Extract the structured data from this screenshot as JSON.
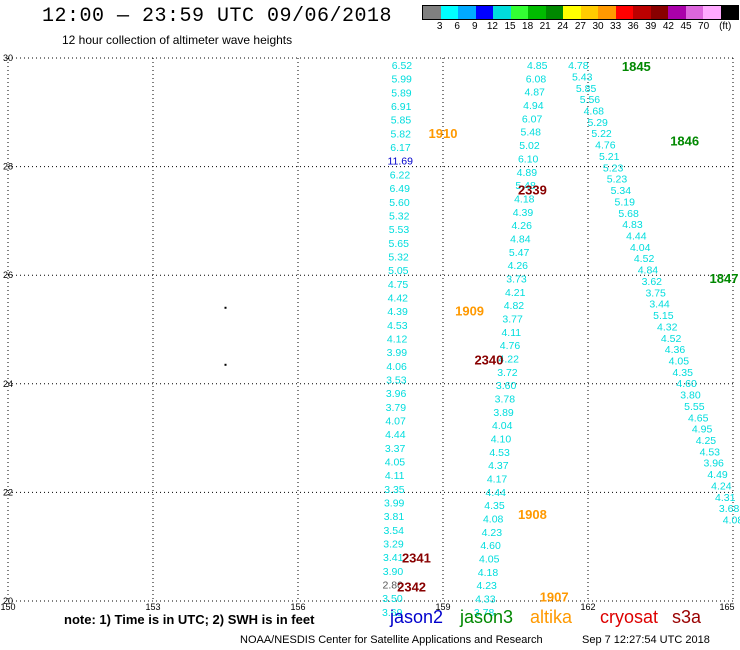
{
  "header": {
    "title": "12:00 — 23:59 UTC 09/06/2018",
    "subtitle": "12 hour collection of altimeter wave heights"
  },
  "legend": {
    "colors": [
      "#808080",
      "#00ffff",
      "#00aaff",
      "#0000ff",
      "#00dddd",
      "#33ff33",
      "#00bb00",
      "#008800",
      "#ffff00",
      "#ffcc00",
      "#ff9900",
      "#ff0000",
      "#bb0000",
      "#880000",
      "#aa00aa",
      "#dd66dd",
      "#ffaaff",
      "#000000"
    ],
    "ticks": [
      {
        "label": "3",
        "slot": 1
      },
      {
        "label": "6",
        "slot": 2
      },
      {
        "label": "9",
        "slot": 3
      },
      {
        "label": "12",
        "slot": 4
      },
      {
        "label": "15",
        "slot": 5
      },
      {
        "label": "18",
        "slot": 6
      },
      {
        "label": "21",
        "slot": 7
      },
      {
        "label": "24",
        "slot": 8
      },
      {
        "label": "27",
        "slot": 9
      },
      {
        "label": "30",
        "slot": 10
      },
      {
        "label": "33",
        "slot": 11
      },
      {
        "label": "36",
        "slot": 12
      },
      {
        "label": "39",
        "slot": 13
      },
      {
        "label": "42",
        "slot": 14
      },
      {
        "label": "45",
        "slot": 15
      },
      {
        "label": "70",
        "slot": 16
      },
      {
        "label": "(ft)",
        "slot": 17
      }
    ]
  },
  "footer": {
    "note": "note: 1) Time is in UTC; 2) SWH is in feet",
    "credit": "NOAA/NESDIS Center for Satellite Applications and Research",
    "time": "Sep  7 12:27:54 UTC 2018"
  },
  "missions": [
    {
      "name": "jason2",
      "color": "#0000cc"
    },
    {
      "name": "jason3",
      "color": "#008800"
    },
    {
      "name": "altika",
      "color": "#ff9900"
    },
    {
      "name": "cryosat",
      "color": "#dd0000"
    },
    {
      "name": "s3a",
      "color": "#990000"
    }
  ],
  "chart_data": {
    "type": "scatter",
    "title": "12:00 — 23:59 UTC 09/06/2018",
    "subtitle": "12 hour collection of altimeter wave heights",
    "xlim": [
      150,
      165
    ],
    "ylim": [
      20,
      30
    ],
    "x_ticks": [
      150,
      153,
      156,
      159,
      162,
      165
    ],
    "x_tick_labels": [
      "150",
      "153",
      "156",
      "159",
      "162",
      "165"
    ],
    "y_ticks": [
      20,
      22,
      24,
      26,
      28,
      30
    ],
    "y_tick_labels": [
      "20",
      "22",
      "24",
      "26",
      "28",
      "30"
    ],
    "grid": "dotted",
    "dots": [
      {
        "x": 154.5,
        "y": 25.4
      },
      {
        "x": 154.5,
        "y": 24.35
      }
    ],
    "tracks": [
      {
        "color": "#00dddd",
        "x_top": 158.15,
        "y_top": 29.87,
        "x_bot": 157.95,
        "y_bot": 19.8,
        "values": [
          "6.52",
          "5.99",
          "5.89",
          "6.91",
          "5.85",
          "5.82",
          "6.17",
          "11.69",
          "6.22",
          "6.49",
          "5.60",
          "5.32",
          "5.53",
          "5.65",
          "5.32",
          "5.05",
          "4.75",
          "4.42",
          "4.39",
          "4.53",
          "4.12",
          "3.99",
          "4.06",
          "3.53",
          "3.96",
          "3.79",
          "4.07",
          "4.44",
          "3.37",
          "4.05",
          "4.11",
          "3.35",
          "3.99",
          "3.81",
          "3.54",
          "3.29",
          "3.41",
          "3.90",
          "2.80",
          "3.50",
          "3.69"
        ],
        "special": {
          "7": "#0000cc",
          "38": "#555555"
        }
      },
      {
        "color": "#00dddd",
        "x_top": 160.95,
        "y_top": 29.87,
        "x_bot": 159.85,
        "y_bot": 19.8,
        "values": [
          "4.85",
          "6.08",
          "4.87",
          "4.94",
          "6.07",
          "5.48",
          "5.02",
          "6.10",
          "4.89",
          "5.48",
          "4.18",
          "4.39",
          "4.26",
          "4.84",
          "5.47",
          "4.26",
          "3.73",
          "4.21",
          "4.82",
          "3.77",
          "4.11",
          "4.76",
          "4.22",
          "3.72",
          "3.60",
          "3.78",
          "3.89",
          "4.04",
          "4.10",
          "4.53",
          "4.37",
          "4.17",
          "4.44",
          "4.35",
          "4.08",
          "4.23",
          "4.60",
          "4.05",
          "4.18",
          "4.23",
          "4.33",
          "3.78"
        ]
      },
      {
        "color": "#00dddd",
        "x_top": 161.8,
        "y_top": 29.87,
        "x_bot": 165.0,
        "y_bot": 21.5,
        "values": [
          "4.78",
          "5.43",
          "5.85",
          "5.56",
          "4.68",
          "5.29",
          "5.22",
          "4.76",
          "5.21",
          "5.23",
          "5.23",
          "5.34",
          "5.19",
          "5.68",
          "4.83",
          "4.44",
          "4.04",
          "4.52",
          "4.84",
          "3.62",
          "3.75",
          "3.44",
          "5.15",
          "4.32",
          "4.52",
          "4.36",
          "4.05",
          "4.35",
          "4.60",
          "3.80",
          "5.55",
          "4.65",
          "4.95",
          "4.25",
          "4.53",
          "3.96",
          "4.49",
          "4.24",
          "4.31",
          "3.68",
          "4.08"
        ]
      }
    ],
    "pass_labels": [
      {
        "text": "1845",
        "x": 163.0,
        "y": 29.85,
        "color": "#008800"
      },
      {
        "text": "1910",
        "x": 159.0,
        "y": 28.62,
        "color": "#ff9900"
      },
      {
        "text": "1846",
        "x": 164.0,
        "y": 28.48,
        "color": "#008800"
      },
      {
        "text": "2339",
        "x": 160.85,
        "y": 27.58,
        "color": "#880000"
      },
      {
        "text": "1847",
        "x": 166.0,
        "y": 25.95,
        "color": "#008800"
      },
      {
        "text": "1909",
        "x": 159.55,
        "y": 25.35,
        "color": "#ff9900"
      },
      {
        "text": "2340",
        "x": 159.95,
        "y": 24.45,
        "color": "#880000"
      },
      {
        "text": "1908",
        "x": 160.85,
        "y": 21.6,
        "color": "#ff9900"
      },
      {
        "text": "2341",
        "x": 158.45,
        "y": 20.8,
        "color": "#880000"
      },
      {
        "text": "2342",
        "x": 158.35,
        "y": 20.27,
        "color": "#880000"
      },
      {
        "text": "1907",
        "x": 161.3,
        "y": 20.08,
        "color": "#ff9900"
      }
    ]
  }
}
